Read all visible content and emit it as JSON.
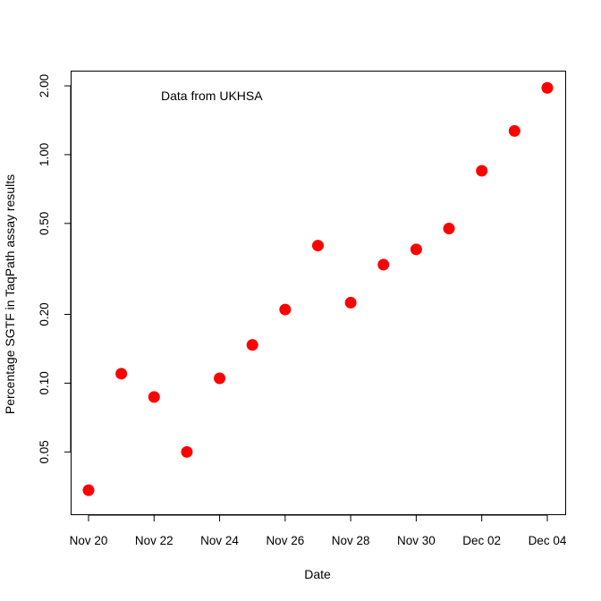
{
  "chart_data": {
    "type": "scatter",
    "title": "",
    "xlabel": "Date",
    "ylabel": "Percentage SGTF in TaqPath assay results",
    "annotation": "Data from UKHSA",
    "y_scale": "log",
    "grid": false,
    "legend": "none",
    "marker_color": "#ff0000",
    "x_ticks": [
      "Nov 20",
      "Nov 22",
      "Nov 24",
      "Nov 26",
      "Nov 28",
      "Nov 30",
      "Dec 02",
      "Dec 04"
    ],
    "y_ticks": [
      "0.05",
      "0.10",
      "0.20",
      "0.50",
      "1.00",
      "2.00"
    ],
    "y_tick_values": [
      0.05,
      0.1,
      0.2,
      0.5,
      1.0,
      2.0
    ],
    "xlim": [
      "Nov 20",
      "Dec 04"
    ],
    "ylim": [
      0.03,
      2.0
    ],
    "points": [
      {
        "x": "Nov 20",
        "y": 0.034
      },
      {
        "x": "Nov 21",
        "y": 0.11
      },
      {
        "x": "Nov 22",
        "y": 0.087
      },
      {
        "x": "Nov 23",
        "y": 0.05
      },
      {
        "x": "Nov 24",
        "y": 0.105
      },
      {
        "x": "Nov 25",
        "y": 0.147
      },
      {
        "x": "Nov 26",
        "y": 0.21
      },
      {
        "x": "Nov 27",
        "y": 0.4
      },
      {
        "x": "Nov 28",
        "y": 0.225
      },
      {
        "x": "Nov 29",
        "y": 0.33
      },
      {
        "x": "Nov 30",
        "y": 0.385
      },
      {
        "x": "Dec 01",
        "y": 0.475
      },
      {
        "x": "Dec 02",
        "y": 0.85
      },
      {
        "x": "Dec 03",
        "y": 1.27
      },
      {
        "x": "Dec 04",
        "y": 1.96
      }
    ]
  }
}
